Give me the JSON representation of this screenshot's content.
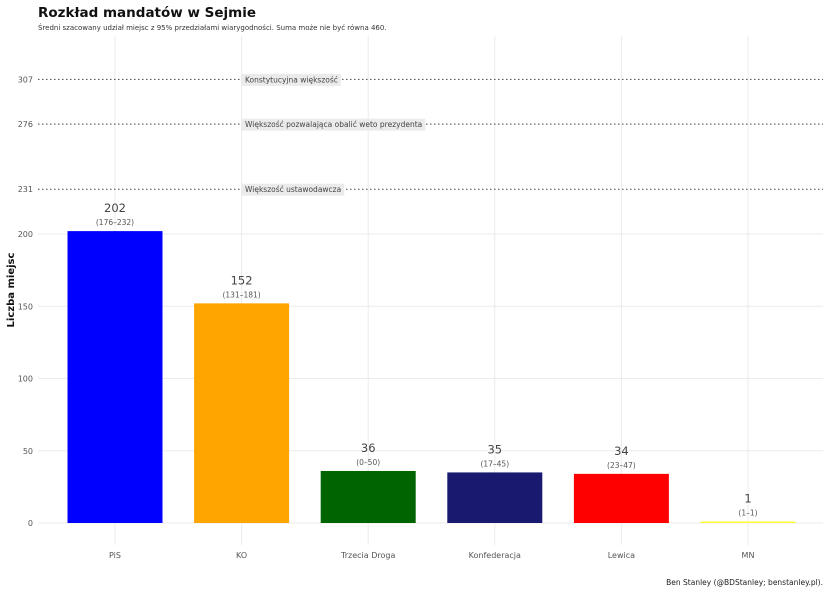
{
  "chart_data": {
    "type": "bar",
    "title": "Rozkład mandatów w Sejmie",
    "subtitle": "Średni szacowany udział miejsc z 95% przedziałami wiarygodności. Suma może nie być równa 460.",
    "xlabel": "",
    "ylabel": "Liczba miejsc",
    "ylim": [
      0,
      320
    ],
    "yticks": [
      0,
      50,
      100,
      150,
      200,
      231,
      276,
      307
    ],
    "grid": true,
    "categories": [
      "PiS",
      "KO",
      "Trzecia Droga",
      "Konfederacja",
      "Lewica",
      "MN"
    ],
    "values": [
      202,
      152,
      36,
      35,
      34,
      1
    ],
    "intervals": [
      "(176–232)",
      "(131–181)",
      "(0–50)",
      "(17–45)",
      "(23–47)",
      "(1–1)"
    ],
    "colors": [
      "#0000ff",
      "#ffa500",
      "#006400",
      "#191970",
      "#ff0000",
      "#ffff33"
    ],
    "reference_lines": [
      {
        "value": 307,
        "label": "Konstytucyjna większość"
      },
      {
        "value": 276,
        "label": "Większość pozwalająca obalić weto prezydenta"
      },
      {
        "value": 231,
        "label": "Większość ustawodawcza"
      }
    ],
    "caption": "Ben Stanley (@BDStanley; benstanley.pl)."
  }
}
